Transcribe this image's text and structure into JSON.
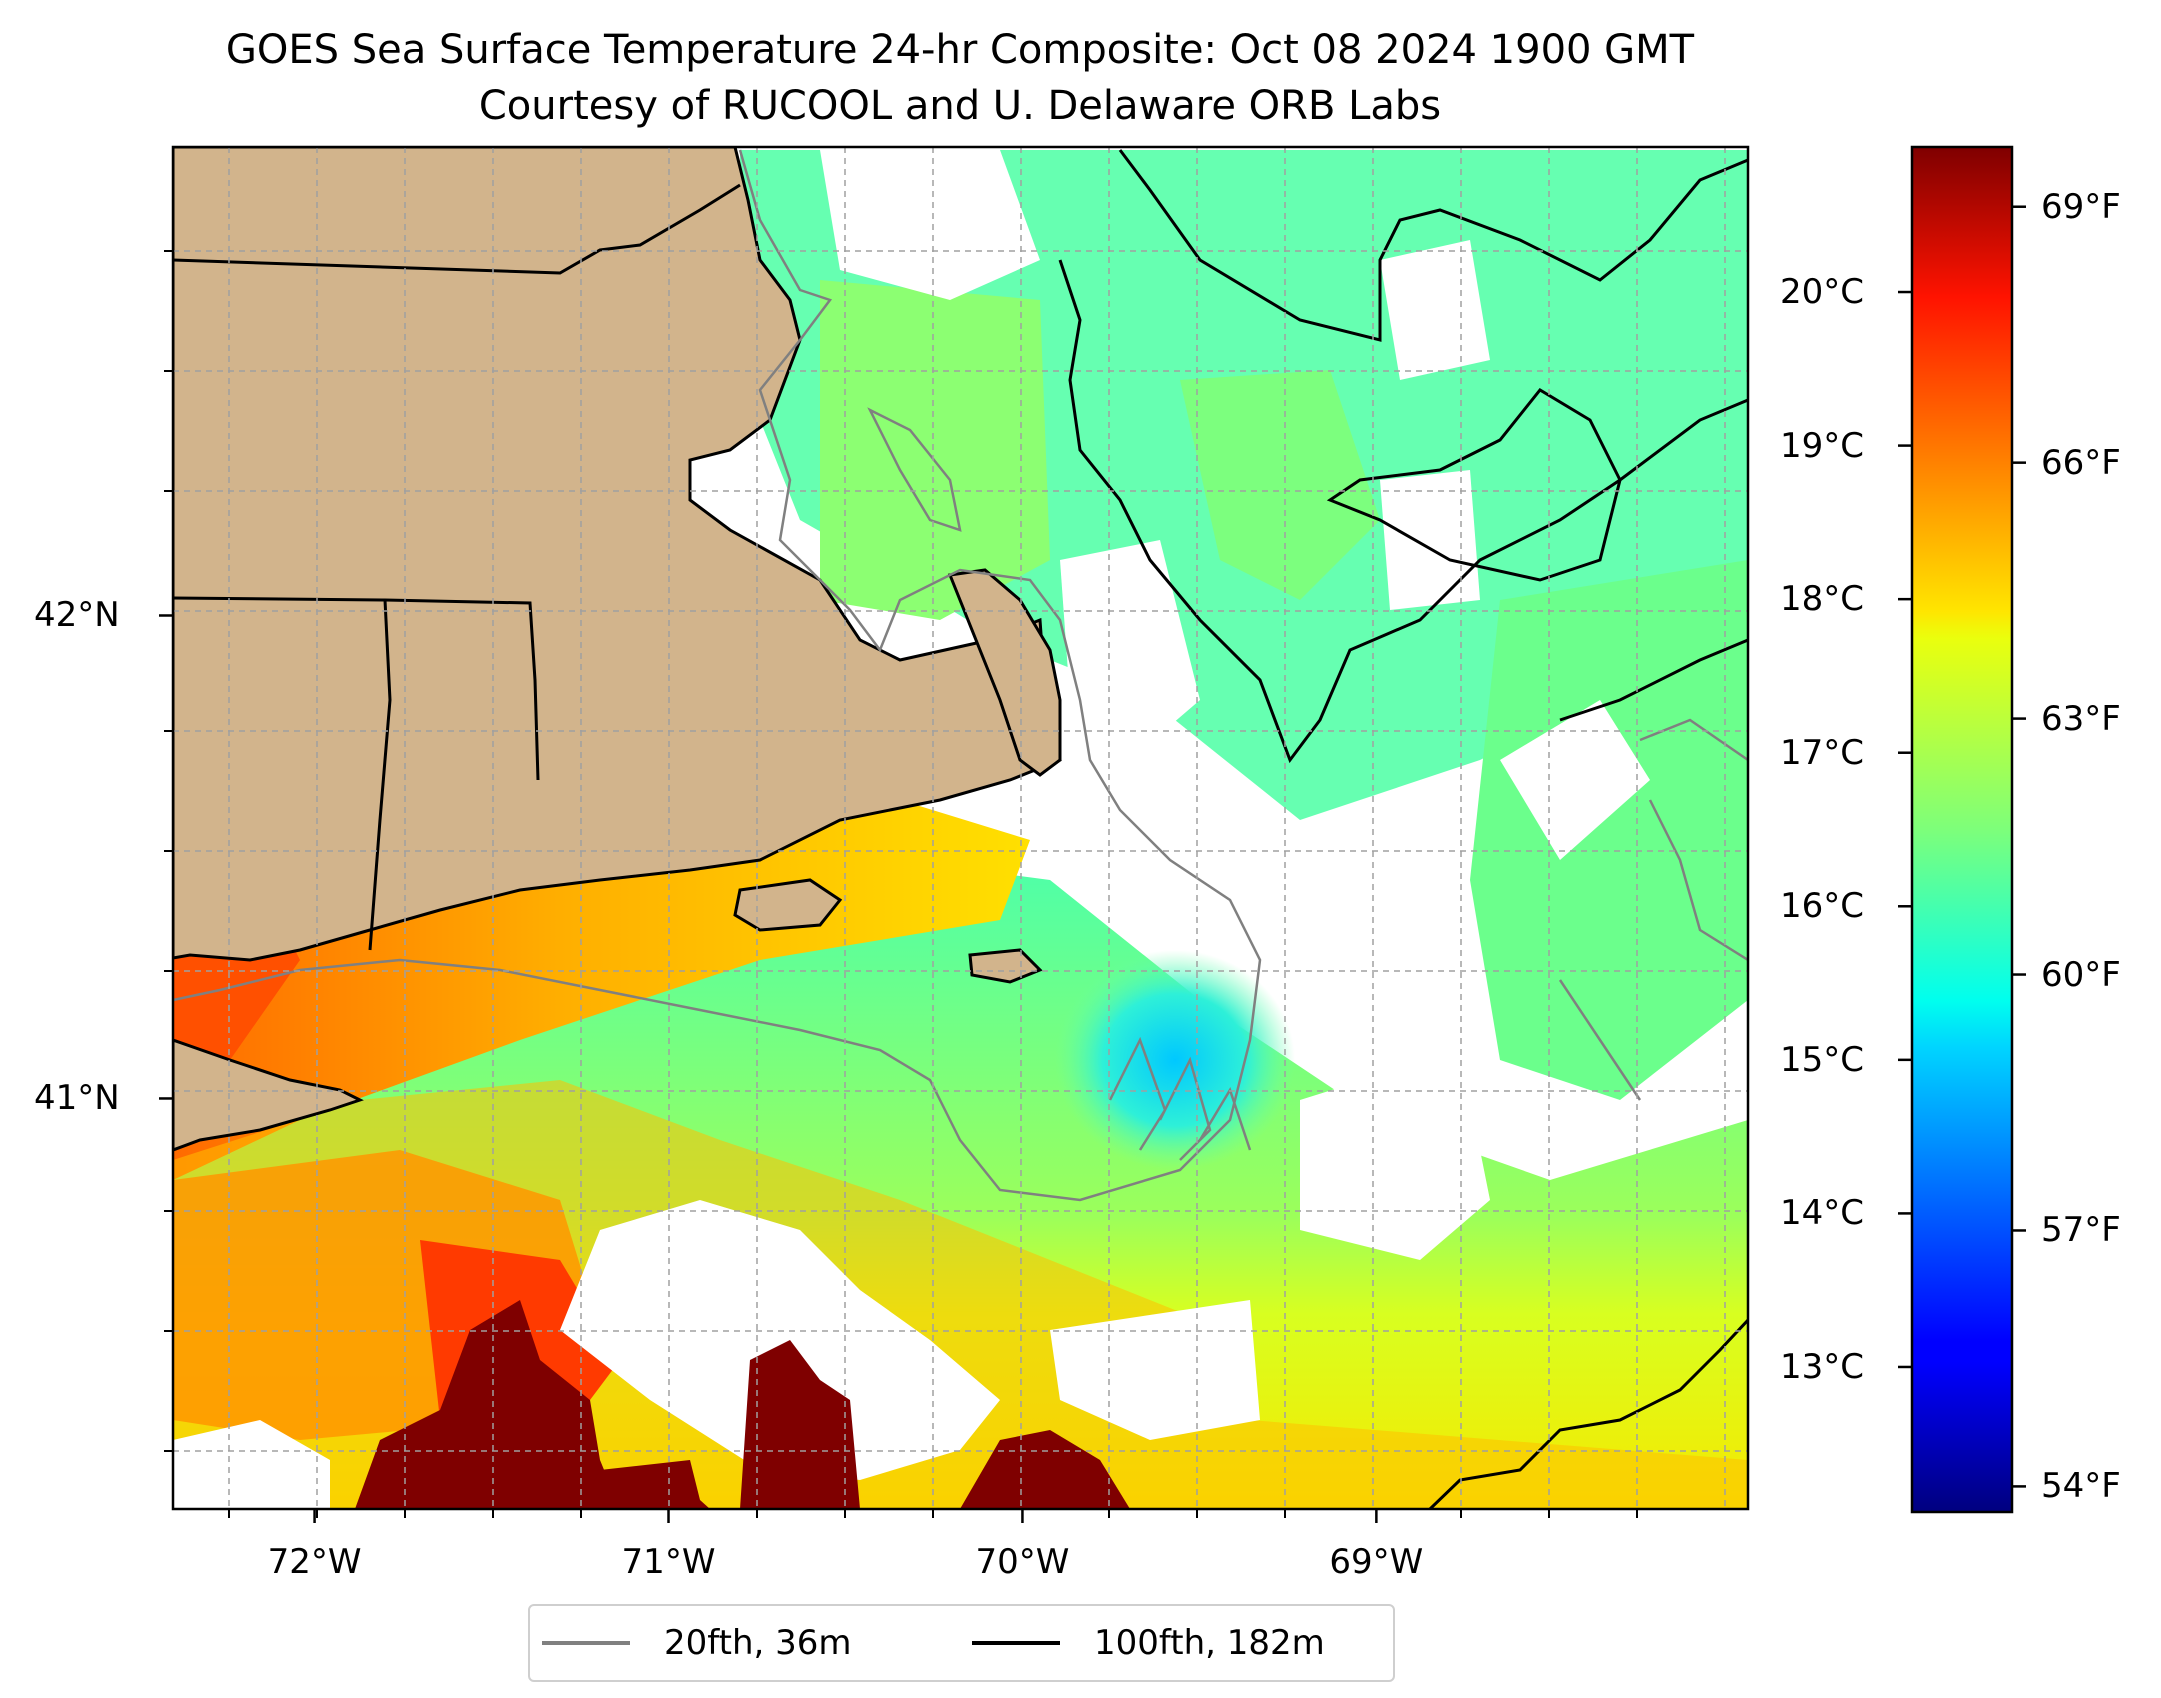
{
  "title": {
    "line1": "GOES Sea Surface Temperature 24-hr Composite: Oct 08 2024 1900 GMT",
    "line2": "Courtesy of RUCOOL and U. Delaware ORB Labs"
  },
  "map": {
    "extent_lon": [
      -72.4,
      -67.95
    ],
    "extent_lat": [
      40.15,
      42.97
    ],
    "x_ticks": [
      {
        "lon": -72,
        "label": "72°W"
      },
      {
        "lon": -71,
        "label": "71°W"
      },
      {
        "lon": -70,
        "label": "70°W"
      },
      {
        "lon": -69,
        "label": "69°W"
      }
    ],
    "y_ticks": [
      {
        "lat": 42,
        "label": "42°N"
      },
      {
        "lat": 41,
        "label": "41°N"
      }
    ],
    "gridlines": true,
    "land_color": "#d2b48c",
    "no_data_color": "#ffffff"
  },
  "colorbar": {
    "colormap": "jet",
    "range_f": [
      53.7,
      69.7
    ],
    "celsius_ticks": [
      {
        "value": 20,
        "label": "20°C"
      },
      {
        "value": 19,
        "label": "19°C"
      },
      {
        "value": 18,
        "label": "18°C"
      },
      {
        "value": 17,
        "label": "17°C"
      },
      {
        "value": 16,
        "label": "16°C"
      },
      {
        "value": 15,
        "label": "15°C"
      },
      {
        "value": 14,
        "label": "14°C"
      },
      {
        "value": 13,
        "label": "13°C"
      }
    ],
    "fahrenheit_ticks": [
      {
        "value": 69,
        "label": "69°F"
      },
      {
        "value": 66,
        "label": "66°F"
      },
      {
        "value": 63,
        "label": "63°F"
      },
      {
        "value": 60,
        "label": "60°F"
      },
      {
        "value": 57,
        "label": "57°F"
      },
      {
        "value": 54,
        "label": "54°F"
      }
    ]
  },
  "legend": {
    "items": [
      {
        "label": "20fth, 36m",
        "color": "#808080"
      },
      {
        "label": "100fth, 182m",
        "color": "#000000"
      }
    ]
  }
}
